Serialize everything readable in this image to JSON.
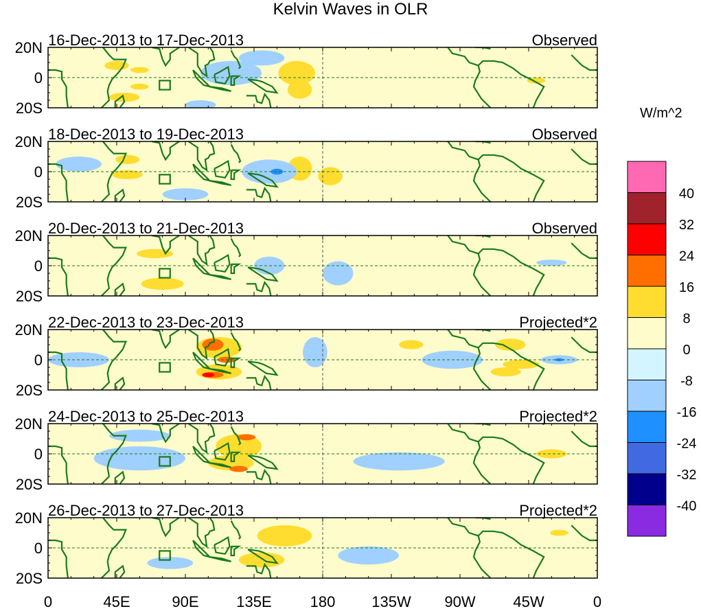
{
  "title": "Kelvin Waves in OLR",
  "units": "W/m^2",
  "chart_data": {
    "type": "heatmap",
    "xlim": [
      0,
      360
    ],
    "ylim": [
      -20,
      20
    ],
    "x_ticks": [
      {
        "v": 0,
        "l": "0"
      },
      {
        "v": 45,
        "l": "45E"
      },
      {
        "v": 90,
        "l": "90E"
      },
      {
        "v": 135,
        "l": "135E"
      },
      {
        "v": 180,
        "l": "180"
      },
      {
        "v": 225,
        "l": "135W"
      },
      {
        "v": 270,
        "l": "90W"
      },
      {
        "v": 315,
        "l": "45W"
      },
      {
        "v": 360,
        "l": "0"
      }
    ],
    "y_ticks": [
      {
        "v": 20,
        "l": "20N"
      },
      {
        "v": 0,
        "l": "0"
      },
      {
        "v": -20,
        "l": "20S"
      }
    ],
    "levels": [
      "40",
      "32",
      "24",
      "16",
      "8",
      "0",
      "-8",
      "-16",
      "-24",
      "-32",
      "-40"
    ],
    "colors": [
      "#ff69b4",
      "#a0222a",
      "#ff0000",
      "#ff6f00",
      "#ffdd30",
      "#fffccc",
      "#d2f5ff",
      "#a0d0ff",
      "#1e90ff",
      "#4169e1",
      "#00008c",
      "#8a2be2"
    ],
    "panels": [
      {
        "period": "16-Dec-2013 to 17-Dec-2013",
        "type": "Observed",
        "blobs": [
          [
            0,
            -20,
            400,
            40,
            6
          ],
          [
            40,
            8,
            25,
            10,
            5
          ],
          [
            100,
            12,
            30,
            8,
            5
          ],
          [
            120,
            3,
            20,
            8,
            7
          ],
          [
            160,
            0,
            20,
            18,
            5
          ],
          [
            163,
            3,
            12,
            8,
            4
          ],
          [
            165,
            -8,
            8,
            6,
            4
          ],
          [
            45,
            8,
            8,
            3,
            4
          ],
          [
            50,
            -13,
            10,
            3,
            4
          ],
          [
            60,
            5,
            6,
            2,
            4
          ],
          [
            60,
            -6,
            6,
            2,
            4
          ],
          [
            230,
            -5,
            30,
            10,
            5
          ],
          [
            310,
            -5,
            25,
            10,
            5
          ],
          [
            320,
            -2,
            6,
            2,
            4
          ],
          [
            345,
            10,
            20,
            8,
            5
          ],
          [
            140,
            13,
            15,
            5,
            7
          ],
          [
            100,
            -18,
            10,
            3,
            7
          ]
        ]
      },
      {
        "period": "18-Dec-2013 to 19-Dec-2013",
        "type": "Observed",
        "blobs": [
          [
            0,
            -20,
            400,
            40,
            6
          ],
          [
            60,
            3,
            25,
            15,
            5
          ],
          [
            170,
            0,
            30,
            18,
            5
          ],
          [
            52,
            -2,
            10,
            3,
            4
          ],
          [
            52,
            8,
            8,
            3,
            4
          ],
          [
            165,
            2,
            8,
            8,
            4
          ],
          [
            185,
            -3,
            8,
            6,
            4
          ],
          [
            110,
            -3,
            25,
            10,
            5
          ],
          [
            145,
            0,
            18,
            8,
            7
          ],
          [
            150,
            0,
            4,
            2,
            8
          ],
          [
            230,
            10,
            20,
            6,
            5
          ],
          [
            250,
            -5,
            30,
            8,
            5
          ],
          [
            320,
            10,
            20,
            6,
            5
          ],
          [
            330,
            -10,
            20,
            6,
            5
          ],
          [
            20,
            5,
            15,
            5,
            7
          ],
          [
            90,
            -15,
            15,
            4,
            7
          ]
        ]
      },
      {
        "period": "20-Dec-2013 to 21-Dec-2013",
        "type": "Observed",
        "blobs": [
          [
            0,
            -20,
            400,
            40,
            6
          ],
          [
            75,
            5,
            40,
            14,
            5
          ],
          [
            75,
            -7,
            40,
            8,
            5
          ],
          [
            70,
            8,
            12,
            3,
            4
          ],
          [
            75,
            -12,
            14,
            4,
            4
          ],
          [
            25,
            2,
            15,
            6,
            5
          ],
          [
            170,
            10,
            30,
            8,
            5
          ],
          [
            235,
            0,
            30,
            10,
            5
          ],
          [
            290,
            10,
            20,
            6,
            5
          ],
          [
            330,
            -10,
            25,
            6,
            5
          ],
          [
            190,
            -5,
            10,
            8,
            7
          ],
          [
            330,
            2,
            10,
            2,
            7
          ],
          [
            145,
            0,
            10,
            6,
            7
          ]
        ]
      },
      {
        "period": "22-Dec-2013 to 23-Dec-2013",
        "type": "Projected*2",
        "blobs": [
          [
            0,
            -20,
            400,
            40,
            6
          ],
          [
            115,
            0,
            30,
            20,
            5
          ],
          [
            112,
            8,
            15,
            7,
            4
          ],
          [
            112,
            -8,
            15,
            5,
            4
          ],
          [
            108,
            10,
            7,
            4,
            3
          ],
          [
            108,
            -10,
            7,
            2,
            3
          ],
          [
            117,
            0,
            6,
            2,
            3
          ],
          [
            105,
            -10,
            4,
            1.5,
            2
          ],
          [
            60,
            12,
            25,
            6,
            5
          ],
          [
            60,
            -10,
            25,
            6,
            5
          ],
          [
            200,
            -5,
            20,
            14,
            5
          ],
          [
            230,
            5,
            20,
            6,
            5
          ],
          [
            238,
            10,
            8,
            3,
            4
          ],
          [
            300,
            5,
            25,
            12,
            5
          ],
          [
            303,
            10,
            10,
            4,
            4
          ],
          [
            310,
            -3,
            12,
            3,
            4
          ],
          [
            300,
            -8,
            10,
            3,
            4
          ],
          [
            175,
            5,
            8,
            10,
            7
          ],
          [
            265,
            0,
            20,
            6,
            7
          ],
          [
            335,
            0,
            12,
            3,
            7
          ],
          [
            335,
            0,
            3,
            1,
            8
          ],
          [
            20,
            0,
            20,
            5,
            7
          ]
        ]
      },
      {
        "period": "24-Dec-2013 to 25-Dec-2013",
        "type": "Projected*2",
        "blobs": [
          [
            0,
            -20,
            400,
            40,
            6
          ],
          [
            130,
            0,
            35,
            20,
            5
          ],
          [
            125,
            5,
            15,
            8,
            4
          ],
          [
            120,
            -6,
            15,
            5,
            4
          ],
          [
            130,
            11,
            6,
            2,
            3
          ],
          [
            125,
            -10,
            6,
            2,
            3
          ],
          [
            200,
            0,
            25,
            12,
            5
          ],
          [
            280,
            5,
            30,
            8,
            5
          ],
          [
            330,
            0,
            10,
            3,
            4
          ],
          [
            60,
            -3,
            30,
            8,
            7
          ],
          [
            60,
            12,
            20,
            4,
            7
          ],
          [
            230,
            -5,
            30,
            6,
            7
          ]
        ]
      },
      {
        "period": "26-Dec-2013 to 27-Dec-2013",
        "type": "Projected*2",
        "blobs": [
          [
            0,
            -20,
            400,
            40,
            6
          ],
          [
            150,
            0,
            40,
            20,
            5
          ],
          [
            155,
            8,
            18,
            7,
            4
          ],
          [
            140,
            -8,
            15,
            5,
            4
          ],
          [
            80,
            5,
            30,
            10,
            5
          ],
          [
            250,
            5,
            40,
            10,
            5
          ],
          [
            320,
            -5,
            25,
            10,
            5
          ],
          [
            335,
            10,
            6,
            2,
            4
          ],
          [
            80,
            -10,
            15,
            4,
            7
          ],
          [
            210,
            -5,
            20,
            6,
            7
          ]
        ]
      }
    ]
  }
}
